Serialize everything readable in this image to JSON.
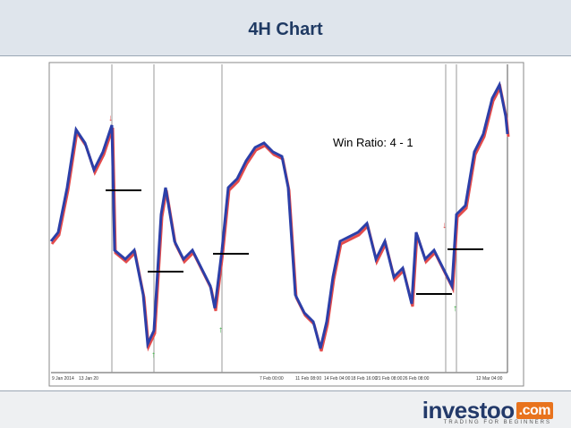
{
  "header": {
    "title": "4H Chart"
  },
  "chart": {
    "annotation": "Win Ratio: 4 - 1",
    "x_labels": [
      "9 Jan 2014",
      "13 Jan 20",
      "7 Feb 00:00",
      "11 Feb 08:00",
      "14 Feb 04:00",
      "18 Feb 16:00",
      "21 Feb 08:00",
      "26 Feb 08:00",
      "12 Mar 04:00"
    ]
  },
  "footer": {
    "logo": "investoo",
    "logo_suffix": ".com",
    "tagline": "TRADING FOR BEGINNERS"
  }
}
